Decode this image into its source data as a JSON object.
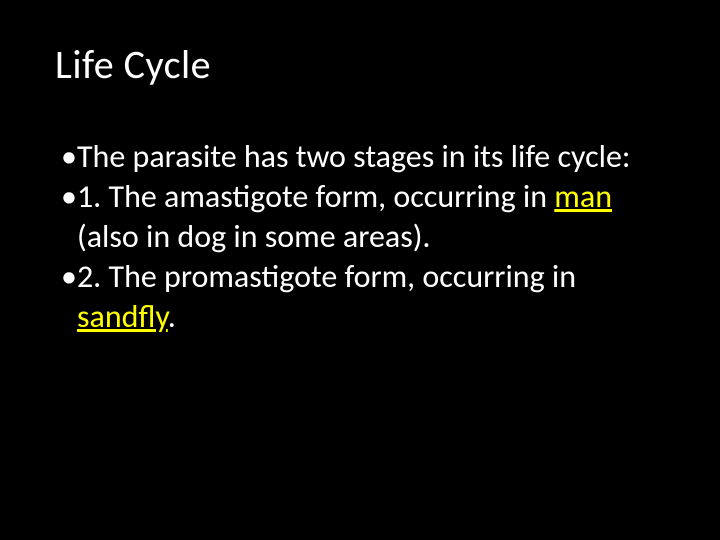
{
  "slide": {
    "title": "Life Cycle",
    "background_color": "#000000",
    "title_color": "#ffffff",
    "title_fontsize": 40,
    "body_color": "#ffffff",
    "body_fontsize": 32,
    "highlight_color": "#ffff00",
    "bullet_char": "•",
    "lines": [
      {
        "pre": "The parasite has two stages in its life cycle:",
        "hl": "",
        "post": ""
      },
      {
        "pre": "1. The amastigote form, occurring in ",
        "hl": "man",
        "post": " (also in dog in some areas)."
      },
      {
        "pre": "2. The promastigote form, occurring in ",
        "hl": "sandfly",
        "post": "."
      }
    ]
  }
}
